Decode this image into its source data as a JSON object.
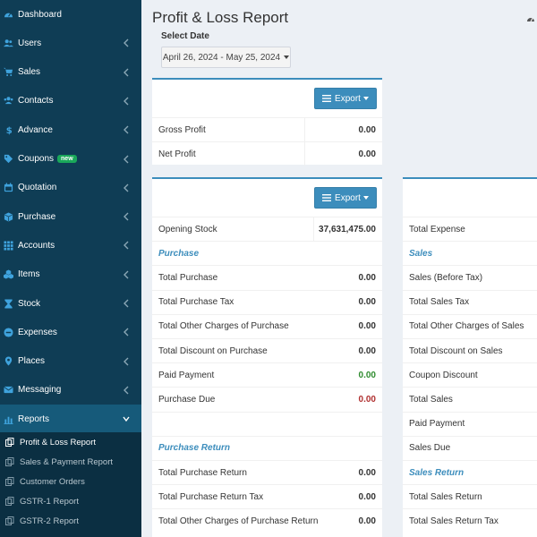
{
  "sidebar": {
    "items": [
      {
        "label": "Dashboard",
        "icon": "dashboard-icon",
        "has_chevron": false
      },
      {
        "label": "Users",
        "icon": "users-icon",
        "has_chevron": true
      },
      {
        "label": "Sales",
        "icon": "cart-icon",
        "has_chevron": true
      },
      {
        "label": "Contacts",
        "icon": "contacts-icon",
        "has_chevron": true
      },
      {
        "label": "Advance",
        "icon": "dollar-icon",
        "has_chevron": true
      },
      {
        "label": "Coupons",
        "icon": "tag-icon",
        "has_chevron": true,
        "badge": "new"
      },
      {
        "label": "Quotation",
        "icon": "calendar-icon",
        "has_chevron": true
      },
      {
        "label": "Purchase",
        "icon": "cube-icon",
        "has_chevron": true
      },
      {
        "label": "Accounts",
        "icon": "grid-icon",
        "has_chevron": true
      },
      {
        "label": "Items",
        "icon": "cubes-icon",
        "has_chevron": true
      },
      {
        "label": "Stock",
        "icon": "hourglass-icon",
        "has_chevron": true
      },
      {
        "label": "Expenses",
        "icon": "minus-circle-icon",
        "has_chevron": true
      },
      {
        "label": "Places",
        "icon": "map-marker-icon",
        "has_chevron": true
      },
      {
        "label": "Messaging",
        "icon": "envelope-icon",
        "has_chevron": true
      },
      {
        "label": "Reports",
        "icon": "bar-chart-icon",
        "has_chevron": true,
        "active": true
      }
    ],
    "submenu": [
      {
        "label": "Profit & Loss Report",
        "active": true
      },
      {
        "label": "Sales & Payment Report"
      },
      {
        "label": "Customer Orders"
      },
      {
        "label": "GSTR-1 Report"
      },
      {
        "label": "GSTR-2 Report"
      }
    ]
  },
  "page": {
    "title": "Profit & Loss Report",
    "date_label": "Select Date",
    "date_range": "April 26, 2024 - May 25, 2024",
    "export_label": "Export"
  },
  "summary": [
    {
      "label": "Gross Profit",
      "value": "0.00"
    },
    {
      "label": "Net Profit",
      "value": "0.00"
    }
  ],
  "purchase_table": [
    {
      "label": "Opening Stock",
      "value": "37,631,475.00"
    },
    {
      "label": "Purchase",
      "section": true
    },
    {
      "label": "Total Purchase",
      "value": "0.00"
    },
    {
      "label": "Total Purchase Tax",
      "value": "0.00"
    },
    {
      "label": "Total Other Charges of Purchase",
      "value": "0.00"
    },
    {
      "label": "Total Discount on Purchase",
      "value": "0.00"
    },
    {
      "label": "Paid Payment",
      "value": "0.00",
      "color": "green"
    },
    {
      "label": "Purchase Due",
      "value": "0.00",
      "color": "red"
    },
    {
      "label": "",
      "blank": true
    },
    {
      "label": "Purchase Return",
      "section": true
    },
    {
      "label": "Total Purchase Return",
      "value": "0.00"
    },
    {
      "label": "Total Purchase Return Tax",
      "value": "0.00"
    },
    {
      "label": "Total Other Charges of Purchase Return",
      "value": "0.00"
    }
  ],
  "sales_table": [
    {
      "label": "Total Expense"
    },
    {
      "label": "Sales",
      "section": true
    },
    {
      "label": "Sales (Before Tax)"
    },
    {
      "label": "Total Sales Tax"
    },
    {
      "label": "Total Other Charges of Sales"
    },
    {
      "label": "Total Discount on Sales"
    },
    {
      "label": "Coupon Discount"
    },
    {
      "label": "Total Sales"
    },
    {
      "label": "Paid Payment"
    },
    {
      "label": "Sales Due"
    },
    {
      "label": "Sales Return",
      "section": true
    },
    {
      "label": "Total Sales Return"
    },
    {
      "label": "Total Sales Return Tax"
    }
  ],
  "colors": {
    "sidebar_bg": "#0f3d55",
    "accent": "#3c8dbc",
    "icon": "#3fa3dd"
  }
}
